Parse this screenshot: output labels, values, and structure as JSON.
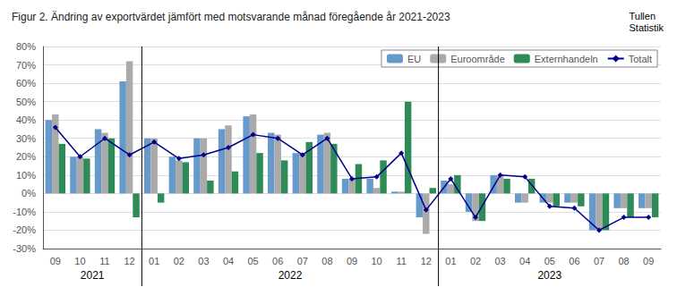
{
  "chart_data": {
    "type": "bar",
    "title": "Figur 2. Ändring av exportvärdet jämfört med motsvarande månad föregående år 2021-2023",
    "annotations": [
      {
        "text": "Tullen\nStatistik"
      },
      {
        "text": "2021",
        "start": 0,
        "end": 3
      },
      {
        "text": "2022",
        "start": 4,
        "end": 15
      },
      {
        "text": "2023",
        "start": 16,
        "end": 24
      }
    ],
    "categories": [
      "09",
      "10",
      "11",
      "12",
      "01",
      "02",
      "03",
      "04",
      "05",
      "06",
      "07",
      "08",
      "09",
      "10",
      "11",
      "12",
      "01",
      "02",
      "03",
      "04",
      "05",
      "06",
      "07",
      "08",
      "09"
    ],
    "series": [
      {
        "name": "EU",
        "type": "bar",
        "color": "#6699CC",
        "values": [
          40,
          20,
          35,
          61,
          30,
          20,
          30,
          35,
          42,
          33,
          22,
          32,
          8,
          8,
          1,
          -13,
          7,
          -10,
          10,
          -5,
          -5,
          -5,
          -20,
          -8,
          -8
        ]
      },
      {
        "name": "Euroområde",
        "type": "bar",
        "color": "#AAAAAA",
        "values": [
          43,
          20,
          33,
          72,
          30,
          18,
          30,
          37,
          43,
          32,
          22,
          33,
          8,
          3,
          1,
          -22,
          5,
          -15,
          10,
          -5,
          -5,
          -5,
          -20,
          -8,
          -8
        ]
      },
      {
        "name": "Externhandeln",
        "type": "bar",
        "color": "#2E8B57",
        "values": [
          27,
          19,
          30,
          -13,
          -5,
          17,
          7,
          12,
          22,
          18,
          28,
          27,
          16,
          18,
          50,
          3,
          10,
          -15,
          8,
          8,
          -7,
          -7,
          -20,
          -13,
          -13
        ]
      },
      {
        "name": "Totalt",
        "type": "line",
        "color": "#00008B",
        "marker": "diamond",
        "values": [
          36,
          20,
          30,
          21,
          28,
          19,
          21,
          25,
          32,
          30,
          21,
          30,
          8,
          9,
          22,
          -9,
          8,
          -13,
          10,
          9,
          -7,
          -8,
          -20,
          -13,
          -13
        ]
      }
    ],
    "ylim": [
      -30,
      80
    ],
    "yticks": [
      {
        "value": -30,
        "label": "-30%"
      },
      {
        "value": -20,
        "label": "-20%"
      },
      {
        "value": -10,
        "label": "-10%"
      },
      {
        "value": 0,
        "label": "0%"
      },
      {
        "value": 10,
        "label": "10%"
      },
      {
        "value": 20,
        "label": "20%"
      },
      {
        "value": 30,
        "label": "30%"
      },
      {
        "value": 40,
        "label": "40%"
      },
      {
        "value": 50,
        "label": "50%"
      },
      {
        "value": 60,
        "label": "60%"
      },
      {
        "value": 70,
        "label": "70%"
      },
      {
        "value": 80,
        "label": "80%"
      }
    ],
    "grid": true,
    "legend": "upper right"
  }
}
